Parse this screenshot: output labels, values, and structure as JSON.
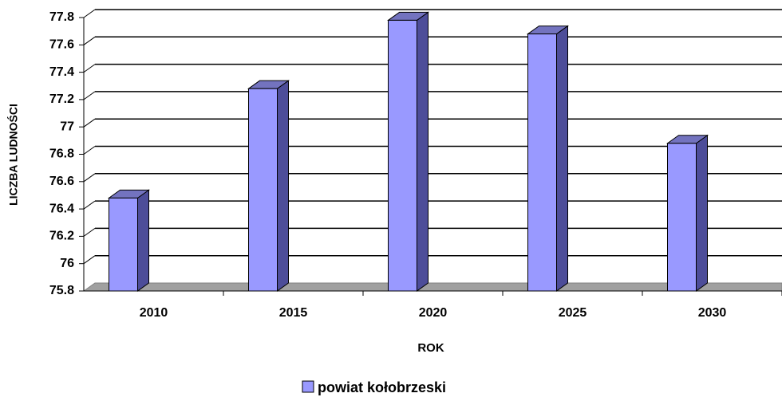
{
  "chart_data": {
    "type": "bar",
    "x_label": "ROK",
    "y_label": "LICZBA LUDNOŚCI",
    "categories": [
      "2010",
      "2015",
      "2020",
      "2025",
      "2030"
    ],
    "series": [
      {
        "name": "powiat kołobrzeski",
        "color": "#9999ff",
        "values": [
          76.48,
          77.28,
          77.78,
          77.68,
          76.88
        ]
      }
    ],
    "ylim": [
      75.8,
      77.8
    ],
    "yticks": [
      75.8,
      76,
      76.2,
      76.4,
      76.6,
      76.8,
      77,
      77.2,
      77.4,
      77.6,
      77.8
    ],
    "grid": true
  }
}
